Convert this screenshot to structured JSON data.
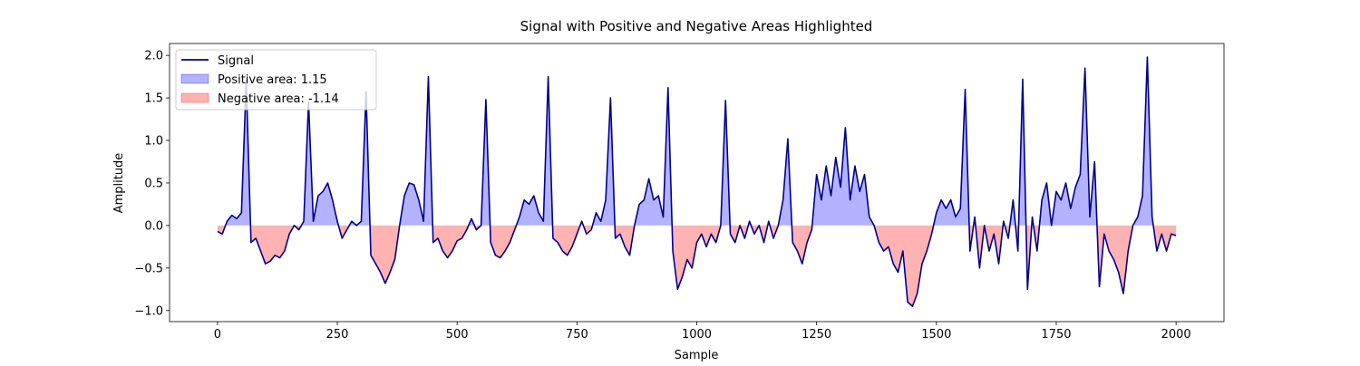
{
  "chart_data": {
    "type": "line",
    "title": "Signal with Positive and Negative Areas Highlighted",
    "x_label": "Sample",
    "y_label": "Amplitude",
    "xlim": [
      -100,
      2100
    ],
    "ylim": [
      -1.13,
      2.14
    ],
    "xticks": [
      0,
      250,
      500,
      750,
      1000,
      1250,
      1500,
      1750,
      2000
    ],
    "yticks": [
      {
        "value": -1.0,
        "label": "−1.0"
      },
      {
        "value": -0.5,
        "label": "−0.5"
      },
      {
        "value": 0.0,
        "label": "0.0"
      },
      {
        "value": 0.5,
        "label": "0.5"
      },
      {
        "value": 1.0,
        "label": "1.0"
      },
      {
        "value": 1.5,
        "label": "1.5"
      },
      {
        "value": 2.0,
        "label": "2.0"
      }
    ],
    "legend": "upper left",
    "series": [
      {
        "name": "Signal",
        "color": "#00008b",
        "x": [
          0,
          10,
          20,
          30,
          40,
          50,
          60,
          70,
          80,
          90,
          100,
          110,
          120,
          130,
          140,
          150,
          160,
          170,
          180,
          190,
          200,
          210,
          220,
          230,
          240,
          250,
          260,
          270,
          280,
          290,
          300,
          310,
          320,
          330,
          340,
          350,
          360,
          370,
          380,
          390,
          400,
          410,
          420,
          430,
          440,
          450,
          460,
          470,
          480,
          490,
          500,
          510,
          520,
          530,
          540,
          550,
          560,
          570,
          580,
          590,
          600,
          610,
          620,
          630,
          640,
          650,
          660,
          670,
          680,
          690,
          700,
          710,
          720,
          730,
          740,
          750,
          760,
          770,
          780,
          790,
          800,
          810,
          820,
          830,
          840,
          850,
          860,
          870,
          880,
          890,
          900,
          910,
          920,
          930,
          940,
          950,
          960,
          970,
          980,
          990,
          1000,
          1010,
          1020,
          1030,
          1040,
          1050,
          1060,
          1070,
          1080,
          1090,
          1100,
          1110,
          1120,
          1130,
          1140,
          1150,
          1160,
          1170,
          1180,
          1190,
          1200,
          1210,
          1220,
          1230,
          1240,
          1250,
          1260,
          1270,
          1280,
          1290,
          1300,
          1310,
          1320,
          1330,
          1340,
          1350,
          1360,
          1370,
          1380,
          1390,
          1400,
          1410,
          1420,
          1430,
          1440,
          1450,
          1460,
          1470,
          1480,
          1490,
          1500,
          1510,
          1520,
          1530,
          1540,
          1550,
          1560,
          1570,
          1580,
          1590,
          1600,
          1610,
          1620,
          1630,
          1640,
          1650,
          1660,
          1670,
          1680,
          1690,
          1700,
          1710,
          1720,
          1730,
          1740,
          1750,
          1760,
          1770,
          1780,
          1790,
          1800,
          1810,
          1820,
          1830,
          1840,
          1850,
          1860,
          1870,
          1880,
          1890,
          1900,
          1910,
          1920,
          1930,
          1940,
          1950,
          1960,
          1970,
          1980,
          1990,
          2000
        ],
        "values": [
          -0.07,
          -0.1,
          0.05,
          0.12,
          0.08,
          0.15,
          1.7,
          -0.2,
          -0.15,
          -0.3,
          -0.45,
          -0.42,
          -0.35,
          -0.38,
          -0.3,
          -0.1,
          0.0,
          -0.05,
          0.05,
          1.45,
          0.05,
          0.35,
          0.4,
          0.5,
          0.3,
          0.05,
          -0.15,
          -0.05,
          0.05,
          0.0,
          0.05,
          1.57,
          -0.35,
          -0.45,
          -0.55,
          -0.68,
          -0.55,
          -0.4,
          0.0,
          0.35,
          0.5,
          0.48,
          0.3,
          0.05,
          1.75,
          -0.2,
          -0.15,
          -0.3,
          -0.38,
          -0.3,
          -0.18,
          -0.15,
          -0.05,
          0.08,
          -0.05,
          0.0,
          1.48,
          -0.2,
          -0.35,
          -0.38,
          -0.3,
          -0.2,
          -0.05,
          0.1,
          0.3,
          0.25,
          0.35,
          0.15,
          0.05,
          1.75,
          -0.15,
          -0.2,
          -0.3,
          -0.35,
          -0.25,
          -0.1,
          0.05,
          -0.1,
          -0.05,
          0.15,
          0.05,
          0.3,
          1.5,
          -0.15,
          -0.1,
          -0.25,
          -0.35,
          0.0,
          0.25,
          0.3,
          0.55,
          0.3,
          0.35,
          0.1,
          1.62,
          -0.3,
          -0.75,
          -0.6,
          -0.4,
          -0.5,
          -0.2,
          -0.1,
          -0.25,
          -0.1,
          -0.2,
          0.0,
          1.47,
          -0.1,
          -0.2,
          0.0,
          -0.15,
          0.05,
          -0.1,
          0.0,
          -0.2,
          0.05,
          -0.15,
          0.0,
          0.3,
          1.02,
          -0.2,
          -0.3,
          -0.45,
          -0.2,
          -0.05,
          0.6,
          0.3,
          0.7,
          0.35,
          0.8,
          0.45,
          1.15,
          0.3,
          0.7,
          0.4,
          0.6,
          0.1,
          0.0,
          -0.2,
          -0.3,
          -0.25,
          -0.45,
          -0.55,
          -0.3,
          -0.9,
          -0.95,
          -0.8,
          -0.45,
          -0.3,
          -0.1,
          0.15,
          0.3,
          0.2,
          0.3,
          0.1,
          0.2,
          1.6,
          -0.3,
          0.1,
          -0.5,
          0.0,
          -0.3,
          -0.1,
          -0.45,
          0.05,
          -0.15,
          0.3,
          -0.3,
          1.72,
          -0.75,
          0.1,
          -0.3,
          0.3,
          0.5,
          0.0,
          0.4,
          0.3,
          0.5,
          0.2,
          0.45,
          0.6,
          1.85,
          0.1,
          0.75,
          -0.72,
          -0.1,
          -0.3,
          -0.4,
          -0.55,
          -0.8,
          -0.3,
          0.0,
          0.1,
          0.35,
          1.98,
          0.1,
          -0.3,
          -0.1,
          -0.3,
          -0.1,
          -0.12
        ]
      }
    ],
    "fills": [
      {
        "name": "Positive area: 1.15",
        "color": "#0000ff",
        "alpha": 0.3,
        "side": "positive"
      },
      {
        "name": "Negative area: -1.14",
        "color": "#ff0000",
        "alpha": 0.3,
        "side": "negative"
      }
    ]
  }
}
